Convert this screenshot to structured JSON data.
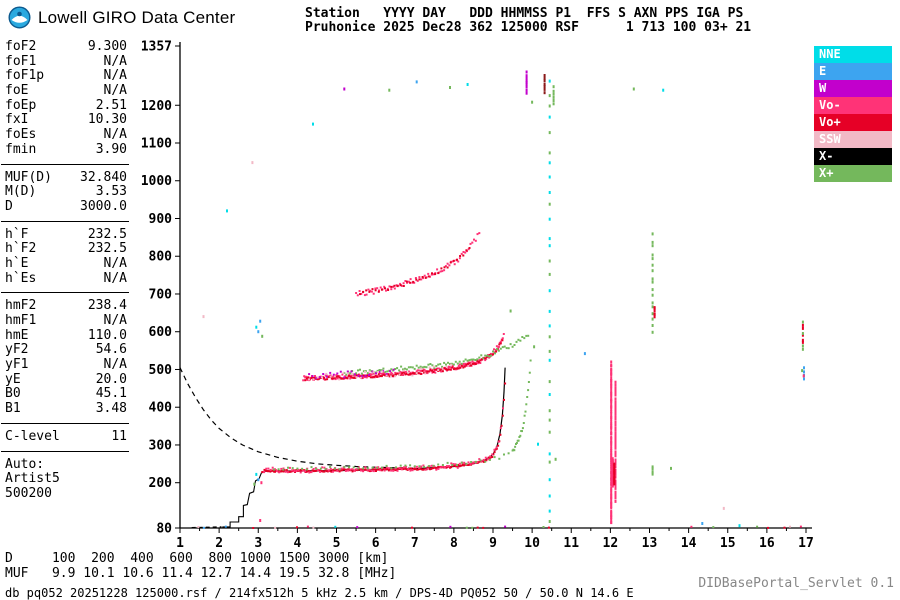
{
  "logo": {
    "text": "Lowell GIRO Data Center"
  },
  "header": {
    "line1": "Station   YYYY DAY   DDD HHMMSS P1  FFS S AXN PPS IGA PS",
    "line2": "Pruhonice 2025 Dec28 362 125000 RSF      1 713 100 03+ 21"
  },
  "params": {
    "groups": [
      {
        "rows": [
          [
            "foF2",
            "9.300"
          ],
          [
            "foF1",
            "N/A"
          ],
          [
            "foF1p",
            "N/A"
          ],
          [
            "foE",
            "N/A"
          ],
          [
            "foEp",
            "2.51"
          ],
          [
            "fxI",
            "10.30"
          ],
          [
            "foEs",
            "N/A"
          ],
          [
            "fmin",
            "3.90"
          ]
        ]
      },
      {
        "rows": [
          [
            "MUF(D)",
            "32.840"
          ],
          [
            "M(D)",
            "3.53"
          ],
          [
            "D",
            "3000.0"
          ]
        ]
      },
      {
        "rows": [
          [
            "h`F",
            "232.5"
          ],
          [
            "h`F2",
            "232.5"
          ],
          [
            "h`E",
            "N/A"
          ],
          [
            "h`Es",
            "N/A"
          ]
        ]
      },
      {
        "rows": [
          [
            "hmF2",
            "238.4"
          ],
          [
            "hmF1",
            "N/A"
          ],
          [
            "hmE",
            "110.0"
          ],
          [
            "yF2",
            "54.6"
          ],
          [
            "yF1",
            "N/A"
          ],
          [
            "yE",
            "20.0"
          ],
          [
            "B0",
            "45.1"
          ],
          [
            "B1",
            "3.48"
          ]
        ]
      },
      {
        "rows": [
          [
            "C-level",
            "11"
          ]
        ]
      }
    ],
    "auto": [
      "Auto:",
      "Artist5",
      "500200"
    ]
  },
  "legend": [
    {
      "label": "NNE",
      "color": "#00dde8"
    },
    {
      "label": "E",
      "color": "#3da4f0"
    },
    {
      "label": "W",
      "color": "#c200cc"
    },
    {
      "label": "Vo-",
      "color": "#ff3377"
    },
    {
      "label": "Vo+",
      "color": "#e60026"
    },
    {
      "label": "SSW",
      "color": "#f2b9c6"
    },
    {
      "label": "X-",
      "color": "#000000"
    },
    {
      "label": "X+",
      "color": "#74b85c"
    }
  ],
  "footer": {
    "d_row": {
      "label": "D",
      "values": [
        "100",
        "200",
        "400",
        "600",
        "800",
        "1000",
        "1500",
        "3000"
      ],
      "unit": "[km]"
    },
    "muf_row": {
      "label": "MUF",
      "values": [
        "9.9",
        "10.1",
        "10.6",
        "11.4",
        "12.7",
        "14.4",
        "19.5",
        "32.8"
      ],
      "unit": "[MHz]"
    },
    "status": "db pq052 20251228 125000.rsf / 214fx512h 5 kHz 2.5 km / DPS-4D PQ052 50 / 50.0 N 14.6 E",
    "servlet": "DIDBasePortal_Servlet 0.1"
  },
  "chart_data": {
    "type": "scatter",
    "x_unit": "[MHz]",
    "y_unit": "[km]",
    "xlim": [
      1,
      17
    ],
    "ylim": [
      80,
      1357
    ],
    "x_ticks": [
      1,
      2,
      3,
      4,
      5,
      6,
      7,
      8,
      9,
      10,
      11,
      12,
      13,
      14,
      15,
      16,
      17
    ],
    "y_ticks": [
      80,
      200,
      300,
      400,
      500,
      600,
      700,
      800,
      900,
      1000,
      1100,
      1200,
      1357
    ],
    "grid": false,
    "legend_position": "right",
    "echo_traces": [
      {
        "name": "F2-1hop-O-Vo+",
        "color": "#e60026",
        "step": 0.03,
        "jitter": 3,
        "points": [
          [
            3.1,
            231
          ],
          [
            4,
            231
          ],
          [
            5,
            232
          ],
          [
            6,
            234
          ],
          [
            7,
            236
          ],
          [
            7.8,
            241
          ],
          [
            8.4,
            248
          ],
          [
            8.8,
            258
          ],
          [
            9.0,
            272
          ],
          [
            9.12,
            295
          ],
          [
            9.2,
            330
          ],
          [
            9.26,
            385
          ],
          [
            9.3,
            450
          ],
          [
            9.32,
            470
          ]
        ]
      },
      {
        "name": "F2-1hop-O-Vo-",
        "color": "#ff3377",
        "step": 0.055,
        "jitter": 7,
        "points": [
          [
            3.15,
            233
          ],
          [
            4,
            233
          ],
          [
            5,
            234
          ],
          [
            6,
            236
          ],
          [
            7,
            238
          ],
          [
            7.8,
            243
          ],
          [
            8.4,
            250
          ],
          [
            8.8,
            262
          ],
          [
            9.0,
            278
          ],
          [
            9.12,
            300
          ],
          [
            9.2,
            338
          ],
          [
            9.26,
            395
          ],
          [
            9.3,
            455
          ]
        ]
      },
      {
        "name": "F2-1hop-X-flat",
        "color": "#74b85c",
        "step": 0.12,
        "jitter": 4,
        "points": [
          [
            3.4,
            237
          ],
          [
            5,
            239
          ],
          [
            6.5,
            242
          ],
          [
            7.5,
            246
          ],
          [
            8.3,
            252
          ],
          [
            8.8,
            258
          ],
          [
            9.2,
            268
          ],
          [
            9.5,
            284
          ]
        ]
      },
      {
        "name": "F2-1hop-X-cusp",
        "color": "#74b85c",
        "step": 0.022,
        "jitter": 6,
        "points": [
          [
            9.5,
            284
          ],
          [
            9.66,
            310
          ],
          [
            9.78,
            355
          ],
          [
            9.87,
            420
          ],
          [
            9.93,
            480
          ],
          [
            9.97,
            540
          ]
        ]
      },
      {
        "name": "F2-2hop-Vo-",
        "color": "#ff3377",
        "step": 0.025,
        "jitter": 6,
        "points": [
          [
            4.15,
            477
          ],
          [
            4.6,
            478
          ],
          [
            5,
            480
          ],
          [
            5.5,
            482
          ],
          [
            6,
            485
          ],
          [
            6.5,
            488
          ],
          [
            7,
            492
          ],
          [
            7.5,
            497
          ],
          [
            8,
            505
          ],
          [
            8.4,
            513
          ],
          [
            8.7,
            524
          ],
          [
            8.95,
            540
          ],
          [
            9.1,
            556
          ],
          [
            9.2,
            573
          ],
          [
            9.3,
            598
          ]
        ]
      },
      {
        "name": "F2-2hop-Vo+",
        "color": "#e60026",
        "step": 0.04,
        "jitter": 4,
        "points": [
          [
            4.2,
            475
          ],
          [
            5,
            478
          ],
          [
            6,
            483
          ],
          [
            7,
            490
          ],
          [
            8,
            503
          ],
          [
            8.5,
            515
          ],
          [
            8.9,
            535
          ],
          [
            9.1,
            552
          ],
          [
            9.25,
            580
          ]
        ]
      },
      {
        "name": "F2-2hop-X",
        "color": "#74b85c",
        "step": 0.05,
        "jitter": 6,
        "points": [
          [
            5.2,
            491
          ],
          [
            6,
            497
          ],
          [
            7,
            504
          ],
          [
            8,
            516
          ],
          [
            8.6,
            529
          ],
          [
            9.1,
            548
          ],
          [
            9.5,
            566
          ],
          [
            9.75,
            582
          ],
          [
            9.95,
            598
          ]
        ]
      },
      {
        "name": "F2-2hop-W",
        "color": "#c200cc",
        "step": 0.09,
        "jitter": 8,
        "points": [
          [
            4.3,
            482
          ],
          [
            5,
            486
          ],
          [
            5.8,
            490
          ],
          [
            6.5,
            494
          ]
        ]
      },
      {
        "name": "F2-2hop-SSW",
        "color": "#f2b9c6",
        "step": 0.11,
        "jitter": 9,
        "points": [
          [
            4.3,
            480
          ],
          [
            5.5,
            484
          ],
          [
            7,
            493
          ],
          [
            8,
            505
          ]
        ]
      },
      {
        "name": "F2-3hop-Vo-",
        "color": "#ff3377",
        "step": 0.045,
        "jitter": 7,
        "points": [
          [
            5.5,
            700
          ],
          [
            6,
            708
          ],
          [
            6.5,
            720
          ],
          [
            7,
            736
          ],
          [
            7.5,
            756
          ],
          [
            8,
            783
          ],
          [
            8.3,
            810
          ],
          [
            8.55,
            845
          ],
          [
            8.65,
            865
          ]
        ]
      },
      {
        "name": "F2-3hop-Vo+",
        "color": "#e60026",
        "step": 0.08,
        "jitter": 5,
        "points": [
          [
            5.6,
            703
          ],
          [
            6.3,
            714
          ],
          [
            7,
            734
          ],
          [
            7.6,
            760
          ],
          [
            8.1,
            790
          ],
          [
            8.45,
            830
          ]
        ]
      }
    ],
    "interference_columns": [
      {
        "f": 12.02,
        "h1": 92,
        "h2": 520,
        "step": 5,
        "jitter": 3,
        "color": "#ff3377"
      },
      {
        "f": 12.13,
        "h1": 150,
        "h2": 470,
        "step": 7,
        "jitter": 3,
        "color": "#ff3377"
      },
      {
        "f": 12.06,
        "h1": 190,
        "h2": 262,
        "step": 2,
        "jitter": 2,
        "color": "#ff3377"
      },
      {
        "f": 12.1,
        "h1": 195,
        "h2": 250,
        "step": 3,
        "jitter": 2,
        "color": "#e60026"
      },
      {
        "f": 10.45,
        "h1": 95,
        "h2": 1305,
        "step": 38,
        "jitter": 12,
        "color": "#00dde8",
        "alt": "#74b85c"
      },
      {
        "f": 13.08,
        "h1": 600,
        "h2": 870,
        "step": 16,
        "jitter": 5,
        "color": "#74b85c"
      },
      {
        "f": 13.13,
        "h1": 640,
        "h2": 668,
        "step": 5,
        "jitter": 3,
        "color": "#e60026"
      },
      {
        "f": 13.08,
        "h1": 222,
        "h2": 248,
        "step": 7,
        "jitter": 3,
        "color": "#74b85c"
      },
      {
        "f": 9.86,
        "h1": 1232,
        "h2": 1290,
        "step": 7,
        "jitter": 3,
        "color": "#c200cc"
      },
      {
        "f": 10.32,
        "h1": 1233,
        "h2": 1286,
        "step": 8,
        "jitter": 3,
        "color": "#8b1a1a"
      },
      {
        "f": 10.55,
        "h1": 1204,
        "h2": 1254,
        "step": 9,
        "jitter": 3,
        "color": "#74b85c"
      },
      {
        "f": 16.92,
        "h1": 553,
        "h2": 630,
        "step": 9,
        "jitter": 3,
        "color": "#74b85c",
        "alt": "#e60026"
      },
      {
        "f": 16.95,
        "h1": 478,
        "h2": 502,
        "step": 8,
        "jitter": 3,
        "color": "#3da4f0"
      }
    ],
    "noise_row": {
      "h": 82,
      "f1": 1.05,
      "f2": 16.9,
      "step": 0.14,
      "prob": 0.3,
      "jitter": 2
    },
    "palette": [
      "#00dde8",
      "#3da4f0",
      "#c200cc",
      "#ff3377",
      "#e60026",
      "#f2b9c6",
      "#74b85c"
    ],
    "specks": [
      [
        4.4,
        1150,
        "#00dde8"
      ],
      [
        5.2,
        1243,
        "#c200cc"
      ],
      [
        6.35,
        1240,
        "#74b85c"
      ],
      [
        7.05,
        1262,
        "#3da4f0"
      ],
      [
        7.9,
        1247,
        "#74b85c"
      ],
      [
        8.35,
        1255,
        "#00dde8"
      ],
      [
        10.0,
        1208,
        "#74b85c"
      ],
      [
        12.6,
        1243,
        "#74b85c"
      ],
      [
        13.35,
        1240,
        "#00dde8"
      ],
      [
        2.85,
        1048,
        "#f2b9c6"
      ],
      [
        2.2,
        920,
        "#00dde8"
      ],
      [
        1.6,
        640,
        "#f2b9c6"
      ],
      [
        3.05,
        628,
        "#3da4f0"
      ],
      [
        2.95,
        612,
        "#00dde8"
      ],
      [
        3.0,
        600,
        "#3da4f0"
      ],
      [
        3.1,
        588,
        "#74b85c"
      ],
      [
        2.95,
        222,
        "#00dde8"
      ],
      [
        3.0,
        208,
        "#3da4f0"
      ],
      [
        2.9,
        196,
        "#74b85c"
      ],
      [
        3.08,
        200,
        "#ff3377"
      ],
      [
        11.35,
        542,
        "#3da4f0"
      ],
      [
        10.15,
        302,
        "#00dde8"
      ],
      [
        10.6,
        262,
        "#74b85c"
      ],
      [
        14.35,
        92,
        "#3da4f0"
      ],
      [
        14.9,
        132,
        "#f2b9c6"
      ],
      [
        15.3,
        86,
        "#00dde8"
      ],
      [
        16.9,
        497,
        "#74b85c"
      ],
      [
        16.94,
        483,
        "#ff3377"
      ],
      [
        3.05,
        100,
        "#ff3377"
      ],
      [
        13.55,
        238,
        "#74b85c"
      ],
      [
        9.45,
        655,
        "#74b85c"
      ],
      [
        10.05,
        560,
        "#74b85c"
      ]
    ],
    "model_trace": {
      "points": [
        [
          3.2,
          231
        ],
        [
          4,
          231
        ],
        [
          5,
          232
        ],
        [
          6,
          234
        ],
        [
          7,
          237
        ],
        [
          8,
          243
        ],
        [
          8.5,
          250
        ],
        [
          8.8,
          260
        ],
        [
          9.0,
          275
        ],
        [
          9.1,
          295
        ],
        [
          9.18,
          330
        ],
        [
          9.24,
          380
        ],
        [
          9.28,
          440
        ],
        [
          9.31,
          505
        ]
      ]
    },
    "profile_steps": {
      "points": [
        [
          2.08,
          83
        ],
        [
          2.28,
          83
        ],
        [
          2.28,
          96
        ],
        [
          2.5,
          96
        ],
        [
          2.5,
          110
        ],
        [
          2.62,
          110
        ],
        [
          2.62,
          140
        ],
        [
          2.72,
          142
        ],
        [
          2.78,
          172
        ],
        [
          2.88,
          176
        ],
        [
          2.93,
          205
        ],
        [
          3.02,
          210
        ],
        [
          3.08,
          226
        ],
        [
          3.2,
          231
        ]
      ]
    },
    "dashed_bottom": {
      "points": [
        [
          1.3,
          81
        ],
        [
          2.06,
          83
        ]
      ]
    },
    "dashed_curve": {
      "points": [
        [
          1.0,
          505
        ],
        [
          1.2,
          462
        ],
        [
          1.4,
          425
        ],
        [
          1.6,
          393
        ],
        [
          1.8,
          366
        ],
        [
          2.0,
          344
        ],
        [
          2.3,
          319
        ],
        [
          2.6,
          300
        ],
        [
          3.0,
          282
        ],
        [
          3.5,
          267
        ],
        [
          4.0,
          257
        ],
        [
          4.5,
          250
        ],
        [
          5.0,
          246
        ],
        [
          5.5,
          243
        ],
        [
          6.0,
          241
        ],
        [
          6.5,
          239.5
        ],
        [
          7.0,
          238.5
        ]
      ]
    }
  }
}
